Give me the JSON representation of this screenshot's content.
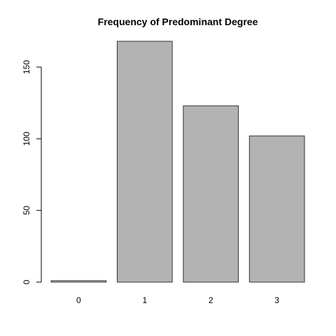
{
  "chart_data": {
    "type": "bar",
    "title": "Frequency of Predominant Degree",
    "xlabel": "",
    "ylabel": "",
    "categories": [
      "0",
      "1",
      "2",
      "3"
    ],
    "values": [
      1,
      168,
      123,
      102
    ],
    "ylim": [
      0,
      168
    ],
    "yticks": [
      0,
      50,
      100,
      150
    ],
    "grid": false,
    "legend": "none",
    "colors": {
      "bar_fill": "#b3b3b3",
      "bar_stroke": "#333333",
      "axis": "#000000",
      "background": "#ffffff"
    }
  }
}
